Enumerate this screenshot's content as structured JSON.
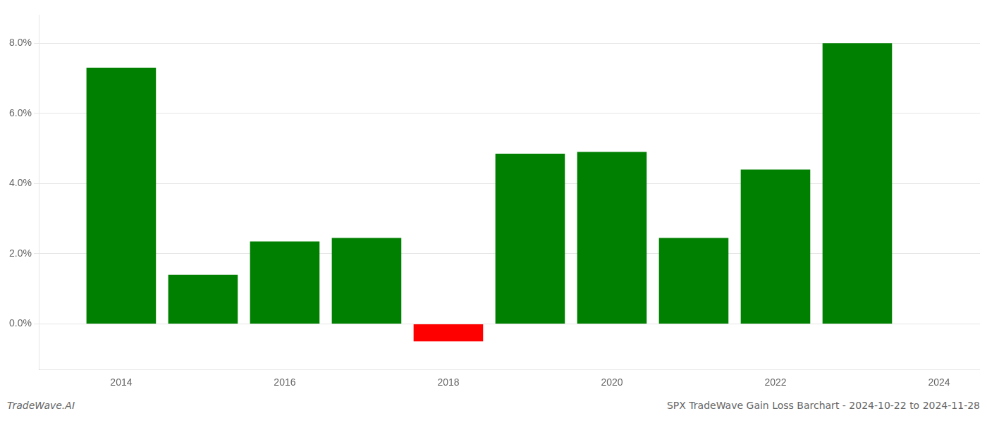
{
  "chart_data": {
    "type": "bar",
    "title": "SPX TradeWave Gain Loss Barchart - 2024-10-22 to 2024-11-28",
    "annotations": [
      "TradeWave.AI"
    ],
    "x": [
      2014,
      2015,
      2016,
      2017,
      2018,
      2019,
      2020,
      2021,
      2022,
      2023
    ],
    "values": [
      0.073,
      0.014,
      0.0235,
      0.0245,
      -0.005,
      0.0485,
      0.049,
      0.0245,
      0.044,
      0.08
    ],
    "colors": [
      "#008000",
      "#008000",
      "#008000",
      "#008000",
      "#ff0000",
      "#008000",
      "#008000",
      "#008000",
      "#008000",
      "#008000"
    ],
    "xlim": [
      2013.0,
      2024.5
    ],
    "xticks": [
      2014,
      2016,
      2018,
      2020,
      2022,
      2024
    ],
    "ylim": [
      -0.013,
      0.088
    ],
    "yticks": [
      {
        "value": 0.0,
        "label": "0.0%"
      },
      {
        "value": 0.02,
        "label": "2.0%"
      },
      {
        "value": 0.04,
        "label": "4.0%"
      },
      {
        "value": 0.06,
        "label": "6.0%"
      },
      {
        "value": 0.08,
        "label": "8.0%"
      }
    ],
    "grid": true
  }
}
